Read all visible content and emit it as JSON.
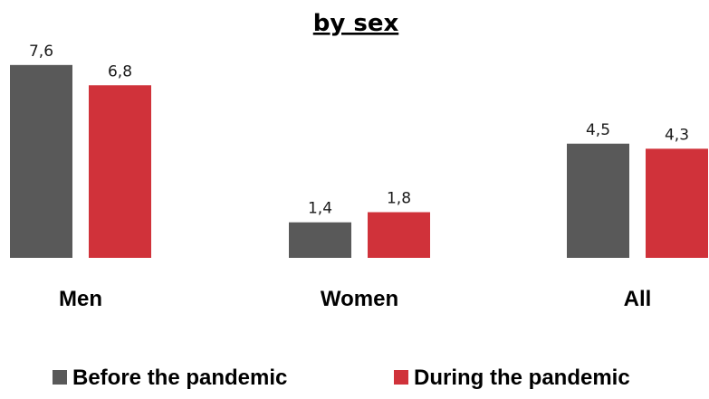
{
  "chart_data": {
    "type": "bar",
    "title": "by sex",
    "xlabel": "",
    "ylabel": "",
    "categories": [
      "Men",
      "Women",
      "All"
    ],
    "series": [
      {
        "name": "Before the pandemic",
        "color": "#595959",
        "values": [
          7.6,
          1.4,
          4.5
        ],
        "labels": [
          "7,6",
          "1,4",
          "4,5"
        ]
      },
      {
        "name": "During the pandemic",
        "color": "#d0323a",
        "values": [
          6.8,
          1.8,
          4.3
        ],
        "labels": [
          "6,8",
          "1,8",
          "4,3"
        ]
      }
    ],
    "ylim": [
      0,
      8.2
    ],
    "grid": false,
    "legend_position": "bottom",
    "value_labels": true
  }
}
